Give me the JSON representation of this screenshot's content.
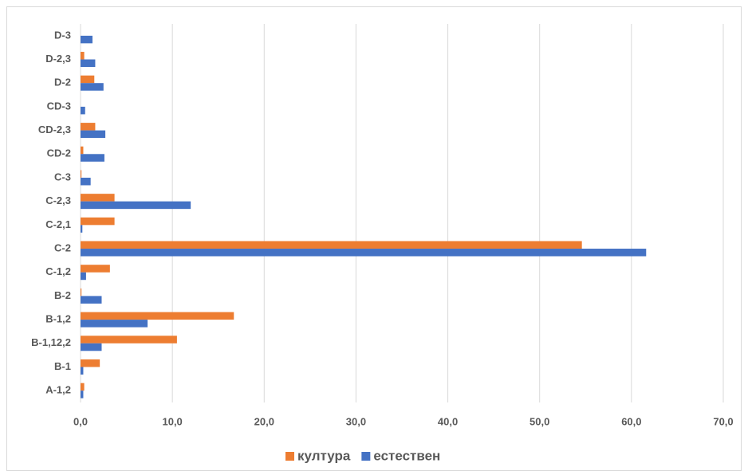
{
  "chart_data": {
    "type": "bar",
    "orientation": "horizontal",
    "categories": [
      "A-1,2",
      "B-1",
      "B-1,12,2",
      "B-1,2",
      "B-2",
      "C-1,2",
      "C-2",
      "C-2,1",
      "C-2,3",
      "C-3",
      "CD-2",
      "CD-2,3",
      "CD-3",
      "D-2",
      "D-2,3",
      "D-3"
    ],
    "series": [
      {
        "name": "култура",
        "color": "#ed7d31",
        "values": [
          0.4,
          2.1,
          10.5,
          16.7,
          0.1,
          3.2,
          54.6,
          3.7,
          3.7,
          0.1,
          0.3,
          1.6,
          0.0,
          1.5,
          0.4,
          0.0
        ]
      },
      {
        "name": "естествен",
        "color": "#4472c4",
        "values": [
          0.3,
          0.3,
          2.3,
          7.3,
          2.3,
          0.6,
          61.6,
          0.2,
          12.0,
          1.1,
          2.6,
          2.7,
          0.5,
          2.5,
          1.6,
          1.3
        ]
      }
    ],
    "xlim": [
      0,
      70
    ],
    "xticks": [
      {
        "value": 0,
        "label": "0,0"
      },
      {
        "value": 10,
        "label": "10,0"
      },
      {
        "value": 20,
        "label": "20,0"
      },
      {
        "value": 30,
        "label": "30,0"
      },
      {
        "value": 40,
        "label": "40,0"
      },
      {
        "value": 50,
        "label": "50,0"
      },
      {
        "value": 60,
        "label": "60,0"
      },
      {
        "value": 70,
        "label": "70,0"
      }
    ],
    "grid": true,
    "legend": "bottom"
  }
}
